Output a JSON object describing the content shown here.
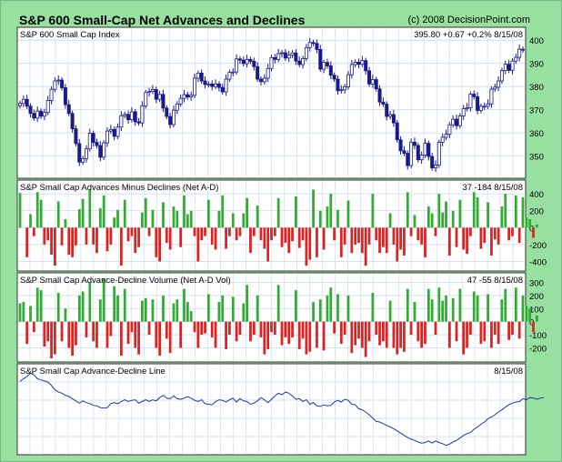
{
  "header": {
    "title": "S&P 600 Small-Cap Net Advances and Declines",
    "copyright": "(c) 2008 DecisionPoint.com"
  },
  "colors": {
    "background": "#98e0a0",
    "panel": "#ffffff",
    "grid": "#c5d8ee",
    "candle": "#1a1a8c",
    "advance": "#33aa33",
    "decline": "#dd2222",
    "line": "#2233aa"
  },
  "chart_data": [
    {
      "type": "candlestick",
      "title": "S&P 600 Small Cap Index",
      "readout": {
        "last": "395.80",
        "change": "+0.67",
        "percent": "+0.2%",
        "date": "8/15/08"
      },
      "yticks": [
        350,
        360,
        370,
        380,
        390,
        400
      ],
      "ylim": [
        342,
        404
      ],
      "grid": true,
      "close": [
        372.7,
        374.5,
        371.5,
        368.4,
        366.4,
        369.4,
        367.2,
        368.8,
        374,
        378.8,
        382.4,
        382.8,
        379.5,
        372.2,
        368.4,
        361.8,
        355.4,
        347.4,
        348.9,
        353.1,
        359.8,
        355.9,
        354.5,
        349.5,
        355.7,
        360.8,
        361.5,
        358.5,
        362.5,
        367.4,
        368,
        365.7,
        369.1,
        364.8,
        364.3,
        371.7,
        377.4,
        377.9,
        378.7,
        374.5,
        376.6,
        370.7,
        367.1,
        363.6,
        369.8,
        372.5,
        374.9,
        376.5,
        375.5,
        376.2,
        383.6,
        385.8,
        382.4,
        380.9,
        381.1,
        380,
        381.1,
        379.6,
        377.7,
        383.2,
        386.1,
        386.3,
        391.9,
        391.4,
        389.9,
        391.7,
        390.9,
        388.6,
        383.2,
        382.1,
        383.6,
        387.8,
        392.5,
        391.7,
        394.2,
        394.6,
        392.3,
        393.5,
        394.5,
        391,
        389.5,
        392.1,
        396.8,
        399,
        398.6,
        396,
        387.5,
        390.4,
        388.9,
        384.9,
        383.2,
        378.2,
        378.6,
        379.9,
        385.1,
        389.5,
        390.5,
        389.6,
        391.2,
        386.8,
        381.1,
        383,
        379,
        373.3,
        372.4,
        367.1,
        367.9,
        364.3,
        357,
        352.3,
        351.2,
        345.9,
        356,
        354.6,
        348.4,
        350.4,
        355.5,
        349.8,
        344.9,
        346.1,
        355.9,
        358.1,
        359.4,
        363.5,
        365.9,
        363.1,
        367.3,
        370.4,
        370.9,
        376.7,
        375.6,
        369.7,
        371.5,
        371.5,
        372.5,
        378.9,
        379.7,
        382.4,
        386.9,
        389.6,
        387,
        391,
        392.6,
        396.1,
        395.8
      ]
    },
    {
      "type": "bar",
      "title": "S&P Small Cap Advances Minus Declines (Net A-D)",
      "readout": {
        "values": "37  -184",
        "date": "8/15/08"
      },
      "yticks": [
        400,
        200,
        0,
        -200,
        -400
      ],
      "ylim": [
        -470,
        520
      ],
      "grid": true,
      "values": [
        410,
        0,
        -350,
        160,
        -100,
        420,
        330,
        -200,
        -150,
        -320,
        -450,
        310,
        -210,
        100,
        -320,
        -350,
        -210,
        220,
        340,
        -200,
        450,
        -200,
        -300,
        230,
        380,
        -280,
        -200,
        120,
        210,
        -450,
        330,
        -160,
        -100,
        -300,
        -230,
        180,
        350,
        -100,
        210,
        -350,
        -400,
        300,
        -180,
        -260,
        250,
        200,
        -230,
        380,
        160,
        200,
        -100,
        -400,
        -150,
        -100,
        330,
        -200,
        -260,
        200,
        380,
        -250,
        -100,
        170,
        -150,
        -100,
        170,
        350,
        -300,
        -100,
        260,
        -150,
        -250,
        -400,
        -150,
        -100,
        350,
        -230,
        -180,
        -300,
        -160,
        370,
        -240,
        -150,
        -450,
        -380,
        450,
        -350,
        200,
        -260,
        250,
        400,
        -150,
        210,
        -350,
        -200,
        320,
        -300,
        -200,
        -180,
        -300,
        -450,
        -200,
        400,
        -150,
        -300,
        -230,
        -300,
        170,
        -200,
        -400,
        -260,
        -330,
        420,
        -100,
        150,
        -150,
        -200,
        -350,
        250,
        170,
        -100,
        400,
        180,
        310,
        -330,
        200,
        -230,
        330,
        -260,
        -310,
        -100,
        420,
        360,
        -250,
        -180,
        300,
        -330,
        -140,
        -200,
        250,
        400,
        -150,
        -100,
        380,
        -180,
        360,
        120,
        100,
        -120,
        37
      ]
    },
    {
      "type": "bar",
      "title": "S&P Small Cap Advance-Decline Volume (Net A-D Vol)",
      "readout": {
        "values": "47  -55",
        "date": "8/15/08"
      },
      "yticks": [
        300,
        200,
        100,
        0,
        -100,
        -200
      ],
      "ylim": [
        -280,
        345
      ],
      "grid": true,
      "values": [
        140,
        150,
        -170,
        120,
        -80,
        260,
        240,
        -190,
        -150,
        -280,
        -250,
        220,
        -150,
        100,
        -200,
        -260,
        -180,
        200,
        230,
        -120,
        300,
        -150,
        -200,
        170,
        330,
        -200,
        -110,
        270,
        200,
        -260,
        250,
        -170,
        -80,
        -200,
        -250,
        160,
        180,
        -100,
        170,
        -200,
        -260,
        200,
        -130,
        -240,
        140,
        170,
        -200,
        250,
        150,
        80,
        -80,
        -200,
        -100,
        -90,
        210,
        -120,
        -200,
        150,
        200,
        -210,
        -100,
        190,
        -150,
        -100,
        140,
        280,
        -150,
        -100,
        200,
        -120,
        -250,
        -210,
        -80,
        -100,
        280,
        -180,
        -120,
        -170,
        -120,
        240,
        -210,
        -130,
        -250,
        -230,
        150,
        -200,
        170,
        -220,
        200,
        260,
        -90,
        210,
        -170,
        -100,
        200,
        -240,
        -180,
        -130,
        -200,
        -270,
        -150,
        220,
        -100,
        -180,
        -150,
        -200,
        160,
        -200,
        -250,
        -200,
        -230,
        250,
        -100,
        150,
        -150,
        -200,
        -170,
        250,
        170,
        -100,
        260,
        160,
        200,
        -200,
        180,
        -150,
        250,
        -250,
        -200,
        -100,
        230,
        200,
        -170,
        -150,
        210,
        -200,
        -100,
        -170,
        170,
        250,
        -140,
        -100,
        260,
        -130,
        200,
        120,
        100,
        -80,
        47
      ]
    },
    {
      "type": "line",
      "title": "S&P Small Cap Advance-Decline Line",
      "readout": {
        "date": "8/15/08"
      },
      "grid": true,
      "values": [
        12500,
        12750,
        12950,
        13250,
        13100,
        12750,
        12650,
        12550,
        12450,
        12150,
        11750,
        11550,
        11450,
        11250,
        11150,
        10950,
        10750,
        10550,
        10750,
        10600,
        10500,
        10350,
        10300,
        10150,
        10100,
        10150,
        10500,
        10600,
        10500,
        10700,
        10850,
        10700,
        10800,
        10850,
        10550,
        10700,
        10850,
        10700,
        10850,
        10750,
        11050,
        11250,
        11000,
        10950,
        11200,
        10950,
        10900,
        11000,
        11150,
        11000,
        10800,
        10700,
        10850,
        10500,
        10450,
        10400,
        10700,
        10850,
        10800,
        10650,
        10850,
        11000,
        10650,
        10950,
        10750,
        10700,
        10450,
        10550,
        10750,
        11050,
        10850,
        10600,
        10900,
        11200,
        11450,
        11300,
        11550,
        11450,
        11200,
        10900,
        10950,
        10700,
        10850,
        10450,
        10600,
        10300,
        10250,
        10400,
        10300,
        10350,
        10650,
        10800,
        10650,
        10900,
        10800,
        10450,
        10400,
        10050,
        9950,
        9750,
        9500,
        9200,
        8900,
        8850,
        8700,
        8550,
        8400,
        8250,
        8050,
        7850,
        7650,
        7450,
        7300,
        7200,
        7050,
        6950,
        7000,
        7150,
        6950,
        7150,
        7000,
        6900,
        6750,
        6850,
        7050,
        7200,
        7400,
        7650,
        7800,
        7900,
        8200,
        8400,
        8650,
        8850,
        9150,
        9300,
        9500,
        9750,
        9950,
        10200,
        10400,
        10550,
        10650,
        10700,
        10950,
        10850,
        11050,
        11000,
        10900,
        11000,
        11050
      ]
    }
  ]
}
